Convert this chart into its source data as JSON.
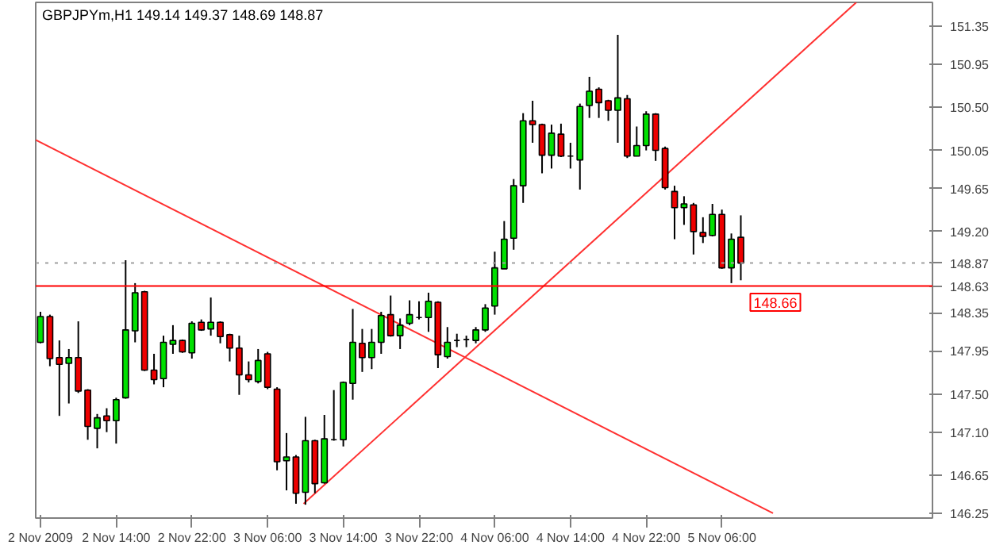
{
  "chart_data": {
    "type": "candlestick",
    "title": "GBPJPYm,H1  149.14 149.37 148.69 148.87",
    "x": [
      "2009-11-02T06:00",
      "2009-11-02T07:00",
      "2009-11-02T08:00",
      "2009-11-02T09:00",
      "2009-11-02T10:00",
      "2009-11-02T11:00",
      "2009-11-02T12:00",
      "2009-11-02T13:00",
      "2009-11-02T14:00",
      "2009-11-02T15:00",
      "2009-11-02T16:00",
      "2009-11-02T17:00",
      "2009-11-02T18:00",
      "2009-11-02T19:00",
      "2009-11-02T20:00",
      "2009-11-02T21:00",
      "2009-11-02T22:00",
      "2009-11-02T23:00",
      "2009-11-03T00:00",
      "2009-11-03T01:00",
      "2009-11-03T02:00",
      "2009-11-03T03:00",
      "2009-11-03T04:00",
      "2009-11-03T05:00",
      "2009-11-03T06:00",
      "2009-11-03T07:00",
      "2009-11-03T08:00",
      "2009-11-03T09:00",
      "2009-11-03T10:00",
      "2009-11-03T11:00",
      "2009-11-03T12:00",
      "2009-11-03T13:00",
      "2009-11-03T14:00",
      "2009-11-03T15:00",
      "2009-11-03T16:00",
      "2009-11-03T17:00",
      "2009-11-03T18:00",
      "2009-11-03T19:00",
      "2009-11-03T20:00",
      "2009-11-03T21:00",
      "2009-11-03T22:00",
      "2009-11-03T23:00",
      "2009-11-04T00:00",
      "2009-11-04T01:00",
      "2009-11-04T02:00",
      "2009-11-04T03:00",
      "2009-11-04T04:00",
      "2009-11-04T05:00",
      "2009-11-04T06:00",
      "2009-11-04T07:00",
      "2009-11-04T08:00",
      "2009-11-04T09:00",
      "2009-11-04T10:00",
      "2009-11-04T11:00",
      "2009-11-04T12:00",
      "2009-11-04T13:00",
      "2009-11-04T14:00",
      "2009-11-04T15:00",
      "2009-11-04T16:00",
      "2009-11-04T17:00",
      "2009-11-04T18:00",
      "2009-11-04T19:00",
      "2009-11-04T20:00",
      "2009-11-04T21:00",
      "2009-11-04T22:00",
      "2009-11-04T23:00",
      "2009-11-05T00:00",
      "2009-11-05T01:00",
      "2009-11-05T02:00",
      "2009-11-05T03:00",
      "2009-11-05T04:00",
      "2009-11-05T05:00",
      "2009-11-05T06:00",
      "2009-11-05T07:00",
      "2009-11-05T08:00"
    ],
    "ohlc": [
      [
        148.04,
        148.36,
        148.03,
        148.31
      ],
      [
        148.31,
        148.33,
        147.79,
        147.87
      ],
      [
        147.88,
        148.06,
        147.27,
        147.81
      ],
      [
        147.82,
        147.97,
        147.4,
        147.88
      ],
      [
        147.88,
        148.26,
        147.51,
        147.53
      ],
      [
        147.54,
        147.55,
        147.02,
        147.16
      ],
      [
        147.14,
        147.29,
        146.93,
        147.25
      ],
      [
        147.27,
        147.35,
        147.1,
        147.22
      ],
      [
        147.22,
        147.46,
        146.98,
        147.44
      ],
      [
        147.46,
        148.9,
        147.45,
        148.17
      ],
      [
        148.16,
        148.66,
        148.04,
        148.56
      ],
      [
        148.57,
        148.58,
        147.74,
        147.75
      ],
      [
        147.75,
        147.92,
        147.6,
        147.65
      ],
      [
        147.66,
        148.11,
        147.57,
        148.04
      ],
      [
        148.02,
        148.22,
        147.92,
        148.06
      ],
      [
        148.06,
        148.07,
        147.93,
        147.94
      ],
      [
        147.93,
        148.26,
        147.87,
        148.24
      ],
      [
        148.25,
        148.28,
        148.16,
        148.17
      ],
      [
        148.18,
        148.51,
        148.11,
        148.25
      ],
      [
        148.25,
        148.26,
        148.03,
        148.1
      ],
      [
        148.12,
        148.13,
        147.84,
        147.98
      ],
      [
        147.98,
        148.11,
        147.49,
        147.7
      ],
      [
        147.7,
        147.84,
        147.62,
        147.65
      ],
      [
        147.63,
        147.97,
        147.61,
        147.85
      ],
      [
        147.92,
        147.94,
        147.55,
        147.57
      ],
      [
        147.55,
        147.57,
        146.7,
        146.79
      ],
      [
        146.8,
        147.09,
        146.49,
        146.84
      ],
      [
        146.84,
        146.86,
        146.35,
        146.46
      ],
      [
        146.47,
        147.26,
        146.34,
        147.01
      ],
      [
        147.01,
        147.02,
        146.46,
        146.56
      ],
      [
        146.57,
        147.28,
        146.56,
        147.03
      ],
      [
        147.02,
        147.54,
        147.01,
        147.02
      ],
      [
        147.02,
        147.63,
        146.95,
        147.62
      ],
      [
        147.61,
        148.39,
        147.44,
        148.04
      ],
      [
        148.03,
        148.18,
        147.73,
        147.88
      ],
      [
        147.88,
        148.18,
        147.76,
        148.04
      ],
      [
        148.04,
        148.36,
        147.92,
        148.32
      ],
      [
        148.33,
        148.53,
        148.1,
        148.11
      ],
      [
        148.11,
        148.29,
        147.97,
        148.22
      ],
      [
        148.24,
        148.48,
        148.22,
        148.33
      ],
      [
        148.3,
        148.47,
        148.28,
        148.3
      ],
      [
        148.3,
        148.56,
        148.15,
        148.47
      ],
      [
        148.46,
        148.47,
        147.77,
        147.91
      ],
      [
        147.89,
        148.2,
        147.87,
        148.04
      ],
      [
        148.06,
        148.13,
        147.99,
        148.06
      ],
      [
        148.07,
        148.11,
        147.99,
        148.07
      ],
      [
        148.06,
        148.2,
        148.03,
        148.17
      ],
      [
        148.17,
        148.44,
        148.15,
        148.4
      ],
      [
        148.42,
        148.99,
        148.33,
        148.82
      ],
      [
        148.81,
        149.31,
        148.81,
        149.12
      ],
      [
        149.13,
        149.75,
        149.01,
        149.68
      ],
      [
        149.68,
        150.44,
        149.5,
        150.36
      ],
      [
        150.36,
        150.57,
        150.13,
        150.32
      ],
      [
        150.32,
        150.33,
        149.81,
        150.0
      ],
      [
        150.0,
        150.32,
        149.86,
        150.23
      ],
      [
        150.22,
        150.33,
        149.98,
        149.99
      ],
      [
        149.99,
        150.13,
        149.86,
        149.99
      ],
      [
        149.95,
        150.54,
        149.64,
        150.51
      ],
      [
        150.52,
        150.82,
        150.39,
        150.67
      ],
      [
        150.69,
        150.71,
        150.39,
        150.55
      ],
      [
        150.57,
        150.58,
        150.36,
        150.47
      ],
      [
        150.47,
        151.26,
        150.13,
        150.6
      ],
      [
        150.59,
        150.63,
        149.97,
        149.99
      ],
      [
        149.99,
        150.3,
        149.99,
        150.1
      ],
      [
        150.1,
        150.46,
        150.05,
        150.43
      ],
      [
        150.43,
        150.44,
        149.94,
        150.05
      ],
      [
        150.07,
        150.09,
        149.64,
        149.66
      ],
      [
        149.62,
        149.68,
        149.12,
        149.45
      ],
      [
        149.45,
        149.57,
        149.27,
        149.49
      ],
      [
        149.48,
        149.5,
        148.96,
        149.2
      ],
      [
        149.19,
        149.35,
        149.08,
        149.15
      ],
      [
        149.16,
        149.49,
        149.15,
        149.38
      ],
      [
        149.38,
        149.43,
        148.81,
        148.82
      ],
      [
        148.82,
        149.18,
        148.66,
        149.12
      ],
      [
        149.14,
        149.37,
        148.69,
        148.87
      ]
    ],
    "series": [
      {
        "type": "line",
        "color": "#ff3030",
        "x": [
          "2009-11-02T05:30",
          "2009-11-05T11:24"
        ],
        "values": [
          150.16,
          146.25
        ]
      },
      {
        "type": "line",
        "color": "#ff3030",
        "x": [
          "2009-11-03T09:48",
          "2009-11-05T20:12"
        ],
        "values": [
          146.35,
          151.6
        ]
      }
    ],
    "xlim": [
      "2009-11-02T05:30",
      "2009-11-06T04:15"
    ],
    "xticks": [
      {
        "value": "2009-11-02T06:00",
        "label": "2 Nov 2009"
      },
      {
        "value": "2009-11-02T14:00",
        "label": "2 Nov 14:00"
      },
      {
        "value": "2009-11-02T22:00",
        "label": "2 Nov 22:00"
      },
      {
        "value": "2009-11-03T06:00",
        "label": "3 Nov 06:00"
      },
      {
        "value": "2009-11-03T14:00",
        "label": "3 Nov 14:00"
      },
      {
        "value": "2009-11-03T22:00",
        "label": "3 Nov 22:00"
      },
      {
        "value": "2009-11-04T06:00",
        "label": "4 Nov 06:00"
      },
      {
        "value": "2009-11-04T14:00",
        "label": "4 Nov 14:00"
      },
      {
        "value": "2009-11-04T22:00",
        "label": "4 Nov 22:00"
      },
      {
        "value": "2009-11-05T06:00",
        "label": "5 Nov 06:00"
      }
    ],
    "ylim": [
      146.2,
      151.6
    ],
    "yticks": [
      {
        "value": 151.35,
        "label": "151.35"
      },
      {
        "value": 150.95,
        "label": "150.95"
      },
      {
        "value": 150.5,
        "label": "150.50"
      },
      {
        "value": 150.05,
        "label": "150.05"
      },
      {
        "value": 149.65,
        "label": "149.65"
      },
      {
        "value": 149.2,
        "label": "149.20"
      },
      {
        "value": 148.35,
        "label": "148.35"
      },
      {
        "value": 147.95,
        "label": "147.95"
      },
      {
        "value": 147.5,
        "label": "147.50"
      },
      {
        "value": 147.1,
        "label": "147.10"
      },
      {
        "value": 146.65,
        "label": "146.65"
      },
      {
        "value": 146.25,
        "label": "146.25"
      }
    ],
    "ref_lines": [
      {
        "axis": "y",
        "value": 148.63,
        "label": "148.63",
        "color": "#ff0000",
        "line_style": "solid"
      },
      {
        "axis": "y",
        "value": 148.87,
        "label": "148.87",
        "color": "#a0a0a0",
        "line_style": "dotted"
      }
    ],
    "annotations": [
      {
        "text": "148.66",
        "x": "2009-11-05T08:30",
        "y": 148.66
      }
    ]
  }
}
